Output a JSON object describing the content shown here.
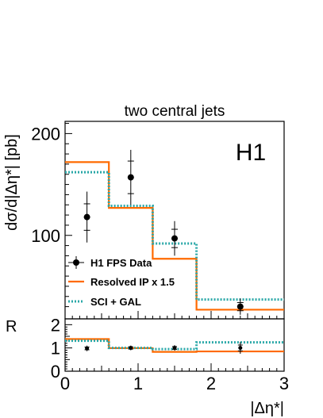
{
  "chart_data": {
    "type": "line",
    "title": "two central jets",
    "experiment_label": "H1",
    "xlabel": "|Δη*|",
    "ylabel": "dσ/d|Δη*| [pb]",
    "ratio_ylabel": "R",
    "xlim": [
      0,
      3
    ],
    "ylim": [
      18,
      212
    ],
    "ratio_ylim": [
      0,
      2.25
    ],
    "x_ticks": [
      "0",
      "1",
      "2",
      "3"
    ],
    "y_ticks": [
      "100",
      "200"
    ],
    "ratio_ticks": [
      "0",
      "1",
      "2"
    ],
    "bin_edges": [
      0,
      0.6,
      1.2,
      1.8,
      3.0
    ],
    "legend_position": "bottom-left",
    "data": {
      "name": "H1 FPS Data",
      "x": [
        0.3,
        0.9,
        1.5,
        2.4
      ],
      "y": [
        118,
        157,
        97,
        30
      ],
      "stat_err": [
        13,
        16,
        9,
        4
      ],
      "tot_err": [
        25,
        27,
        17,
        8
      ]
    },
    "series": [
      {
        "name": "Resolved IP x 1.5",
        "style": "solid",
        "color": "#ff6a00",
        "values": [
          172,
          127,
          77,
          27
        ]
      },
      {
        "name": "SCI + GAL",
        "style": "dotted",
        "color": "#2aa8a8",
        "values": [
          162,
          129,
          92,
          37
        ]
      }
    ],
    "ratio": {
      "data_x": [
        0.3,
        0.9,
        1.5,
        2.4
      ],
      "data_y": [
        0.98,
        1.0,
        1.0,
        1.0
      ],
      "data_err": [
        0.12,
        0.1,
        0.12,
        0.25
      ],
      "resolved": [
        1.38,
        0.99,
        0.83,
        0.85
      ],
      "sci": [
        1.31,
        1.0,
        0.95,
        1.24
      ]
    }
  }
}
